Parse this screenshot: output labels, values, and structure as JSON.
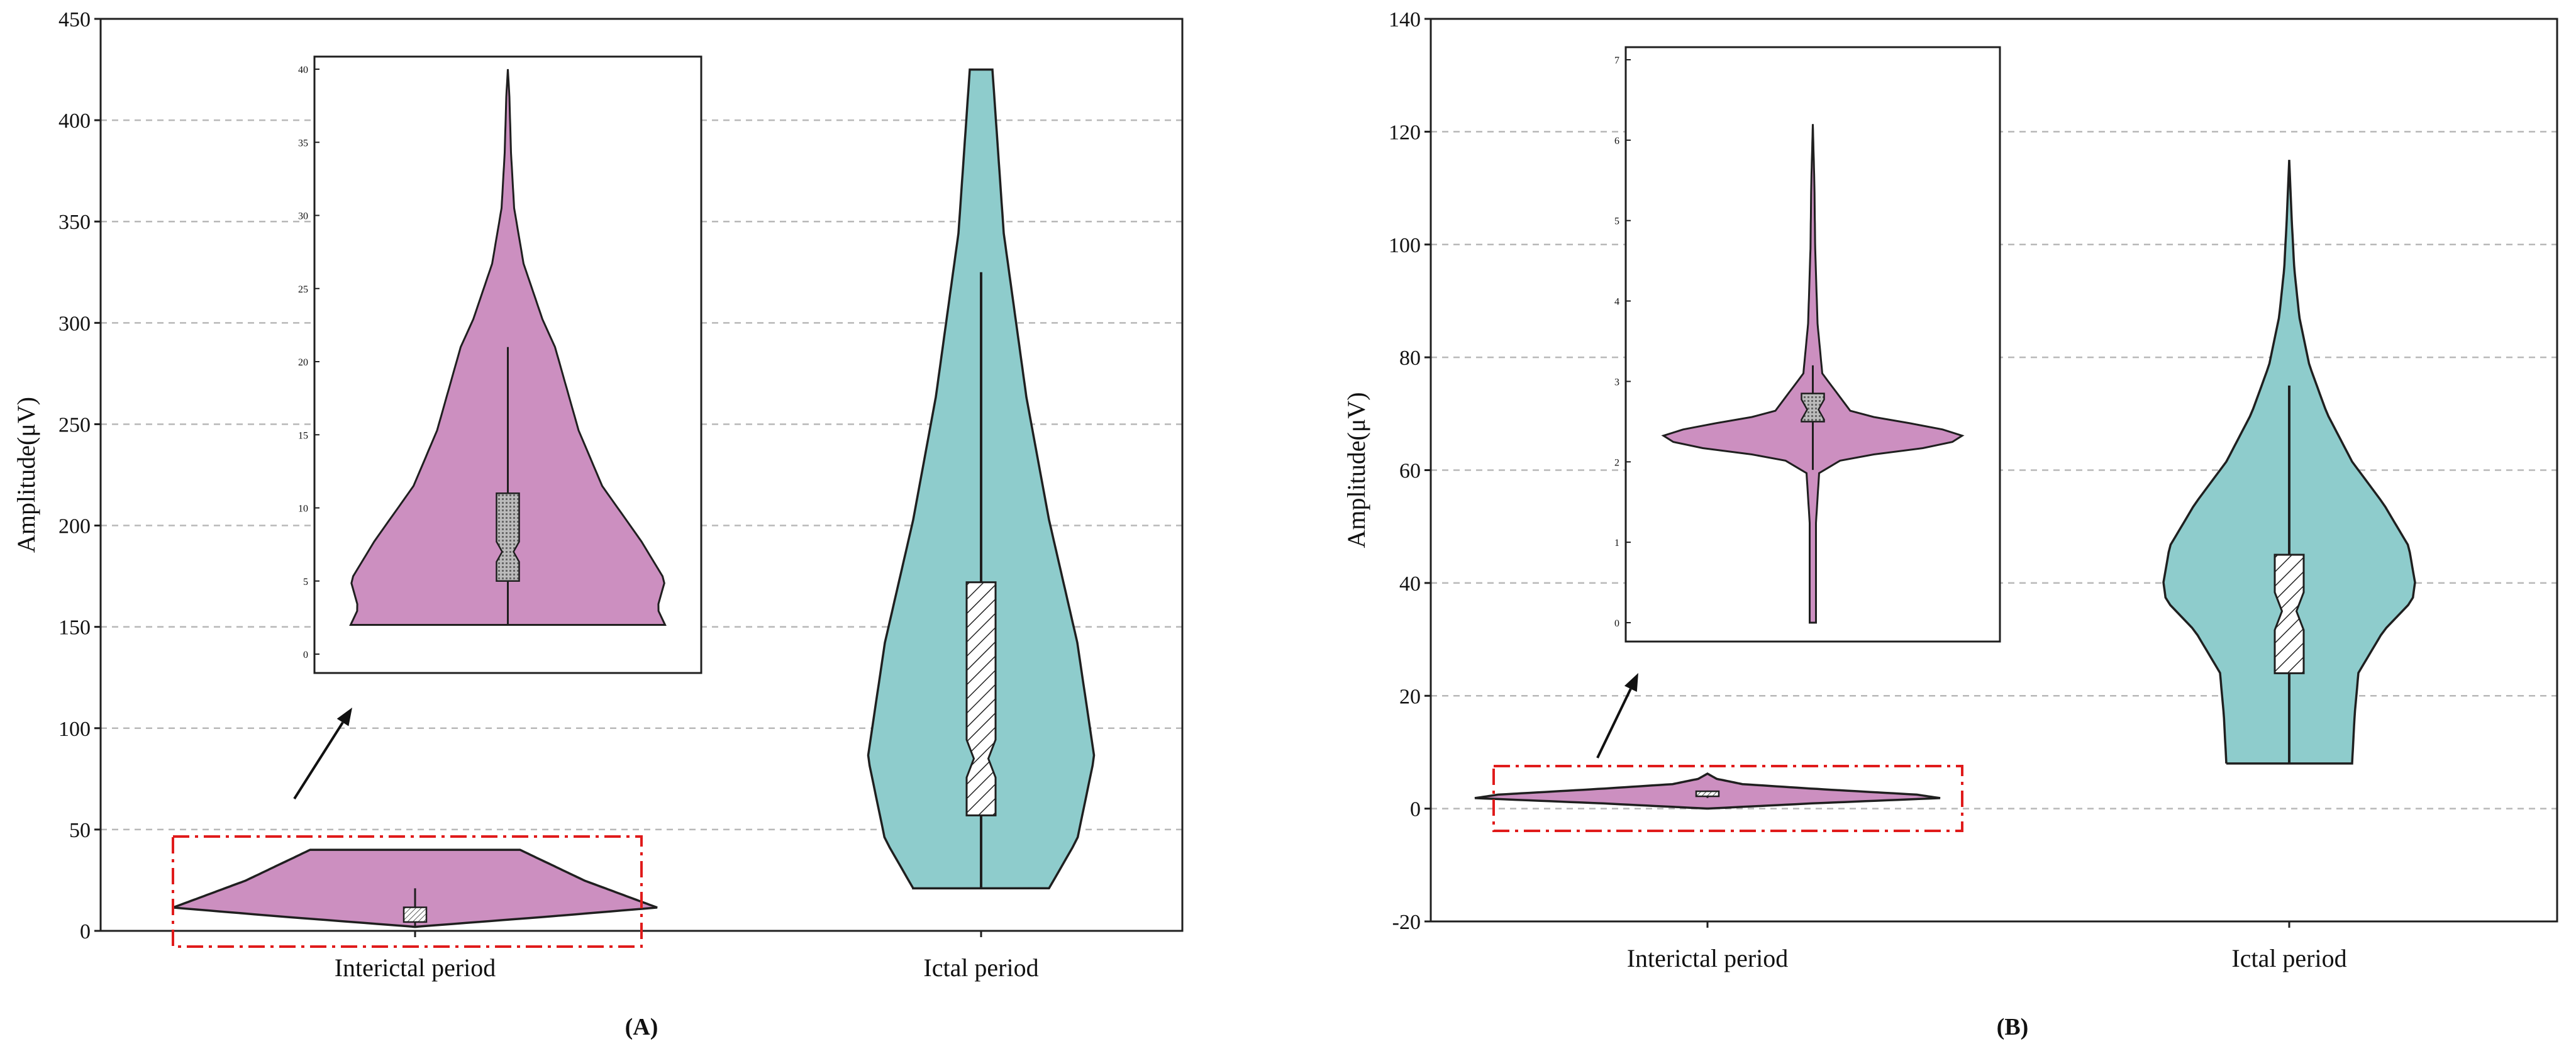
{
  "colors": {
    "interictal": "#cc8fc0",
    "ictal": "#8ecccc",
    "outline": "#1f1f1f",
    "grid": "#b8b8b8",
    "highlight_box": "#e01b1b",
    "box_fill": "#ffffff"
  },
  "chart_data": [
    {
      "type": "violin",
      "panel_label": "(A)",
      "ylabel": "Amplitude(μV)",
      "categories": [
        "Interictal period",
        "Ictal period"
      ],
      "ylim": [
        0,
        450
      ],
      "yticks": [
        0,
        50,
        100,
        150,
        200,
        250,
        300,
        350,
        400,
        450
      ],
      "grid": "horizontal dashed",
      "series": [
        {
          "category": "Interictal period",
          "min": 2,
          "max": 40,
          "box": {
            "q1": 5,
            "median": 7,
            "q3": 11,
            "whisker_low": 2,
            "whisker_high": 21
          },
          "density_mode": 6
        },
        {
          "category": "Ictal period",
          "min": 21,
          "max": 425,
          "box": {
            "q1": 57,
            "median": 85,
            "q3": 172,
            "whisker_low": 21,
            "whisker_high": 325
          },
          "density_mode": 90
        }
      ],
      "inset": {
        "zoom_of": "Interictal period",
        "ylim": [
          0,
          40
        ],
        "yticks": [
          0,
          5,
          10,
          15,
          20,
          25,
          30,
          35,
          40
        ]
      }
    },
    {
      "type": "violin",
      "panel_label": "(B)",
      "ylabel": "Amplitude(μV)",
      "categories": [
        "Interictal period",
        "Ictal period"
      ],
      "ylim": [
        -20,
        140
      ],
      "yticks": [
        -20,
        0,
        20,
        40,
        60,
        80,
        100,
        120,
        140
      ],
      "grid": "horizontal dashed",
      "series": [
        {
          "category": "Interictal period",
          "min": 0,
          "max": 6.2,
          "box": {
            "q1": 2.5,
            "median": 2.65,
            "q3": 2.85,
            "whisker_low": 1.9,
            "whisker_high": 3.2
          },
          "density_mode": 2.6
        },
        {
          "category": "Ictal period",
          "min": 8,
          "max": 115,
          "box": {
            "q1": 24,
            "median": 35,
            "q3": 45,
            "whisker_low": 8,
            "whisker_high": 75
          },
          "density_mode": 35
        }
      ],
      "inset": {
        "zoom_of": "Interictal period",
        "ylim": [
          0,
          7
        ],
        "yticks": [
          0,
          1,
          2,
          3,
          4,
          5,
          6,
          7
        ]
      }
    }
  ]
}
